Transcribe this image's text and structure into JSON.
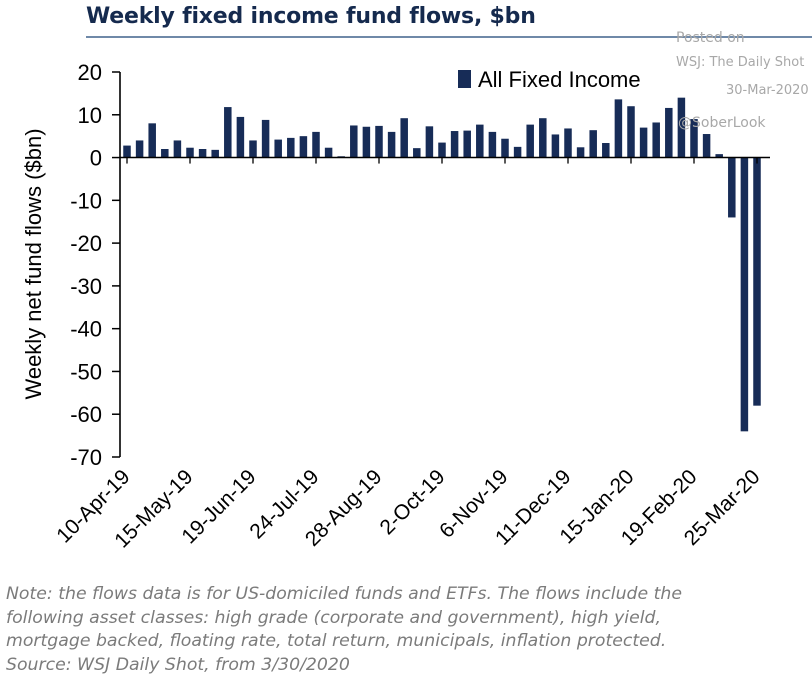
{
  "title": "Weekly fixed income fund flows, $bn",
  "watermark": {
    "posted": "Posted on",
    "source": "WSJ: The Daily Shot",
    "date": "30-Mar-2020",
    "handle": "@SoberLook"
  },
  "note": {
    "line1": "Note: the flows data is for US-domiciled funds and ETFs. The flows include the",
    "line2": "following asset classes: high grade (corporate and government), high yield,",
    "line3": "mortgage backed, floating rate, total return, municipals, inflation protected.",
    "line4": "Source: WSJ Daily Shot, from 3/30/2020"
  },
  "chart_data": {
    "type": "bar",
    "title": "Weekly fixed income fund flows, $bn",
    "ylabel": "Weekly net fund flows ($bn)",
    "xlabel": "",
    "ylim": [
      -70,
      20
    ],
    "yticks": [
      20,
      10,
      0,
      -10,
      -20,
      -30,
      -40,
      -50,
      -60,
      -70
    ],
    "grid": false,
    "legend_position": "top-right",
    "bar_color": "#172c57",
    "x_tick_labels": [
      "10-Apr-19",
      "15-May-19",
      "19-Jun-19",
      "24-Jul-19",
      "28-Aug-19",
      "2-Oct-19",
      "6-Nov-19",
      "11-Dec-19",
      "15-Jan-20",
      "19-Feb-20",
      "25-Mar-20"
    ],
    "x_tick_indices": [
      0,
      5,
      10,
      15,
      20,
      25,
      30,
      35,
      40,
      45,
      50
    ],
    "series": [
      {
        "name": "All Fixed Income",
        "values": [
          2.8,
          4.0,
          8.0,
          2.0,
          4.0,
          2.3,
          2.0,
          1.8,
          11.8,
          9.5,
          4.0,
          8.8,
          4.2,
          4.6,
          5.0,
          6.0,
          2.3,
          0.3,
          7.5,
          7.2,
          7.4,
          6.0,
          9.2,
          2.2,
          7.3,
          3.5,
          6.2,
          6.3,
          7.7,
          6.0,
          4.4,
          2.5,
          7.7,
          9.2,
          5.4,
          6.8,
          2.4,
          6.4,
          3.4,
          13.6,
          12.0,
          7.0,
          8.2,
          11.6,
          14.0,
          9.0,
          5.5,
          0.8,
          -14.0,
          -64.0,
          -58.0
        ]
      }
    ]
  }
}
